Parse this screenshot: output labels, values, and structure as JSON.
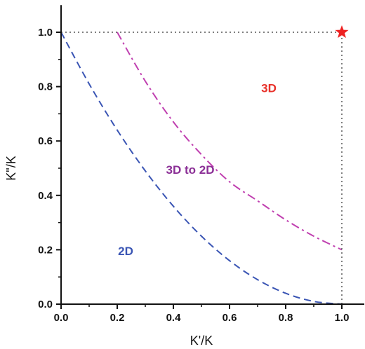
{
  "chart_data": {
    "type": "line",
    "xlabel": "K'/K",
    "ylabel": "K\"/K",
    "xlim": [
      0,
      1.08
    ],
    "ylim": [
      0,
      1.1
    ],
    "x_ticks": [
      "0.0",
      "0.2",
      "0.4",
      "0.6",
      "0.8",
      "1.0"
    ],
    "y_ticks": [
      "0.0",
      "0.2",
      "0.4",
      "0.6",
      "0.8",
      "1.0"
    ],
    "grid": false,
    "series": [
      {
        "style": "dashed",
        "color": "#3a55b4",
        "x": [
          0.0,
          0.1,
          0.2,
          0.3,
          0.4,
          0.5,
          0.6,
          0.7,
          0.8,
          0.9,
          1.0
        ],
        "y": [
          1.0,
          0.81,
          0.64,
          0.49,
          0.36,
          0.25,
          0.16,
          0.09,
          0.04,
          0.01,
          0.0
        ]
      },
      {
        "style": "dash-dot",
        "color": "#c040b0",
        "x": [
          0.2,
          0.3,
          0.4,
          0.5,
          0.6,
          0.7,
          0.8,
          0.9,
          1.0
        ],
        "y": [
          1.0,
          0.82,
          0.67,
          0.55,
          0.45,
          0.38,
          0.31,
          0.25,
          0.2
        ]
      },
      {
        "style": "dotted",
        "color": "#555555",
        "x": [
          0.0,
          1.0
        ],
        "y": [
          1.0,
          1.0
        ]
      },
      {
        "style": "dotted",
        "color": "#555555",
        "x": [
          1.0,
          1.0
        ],
        "y": [
          0.0,
          1.0
        ]
      }
    ],
    "markers": [
      {
        "shape": "star",
        "color": "#ee2222",
        "x": 1.0,
        "y": 1.0
      }
    ],
    "annotations": [
      {
        "text": "3D",
        "x": 0.74,
        "y": 0.78,
        "color": "#e8312a"
      },
      {
        "text": "3D to 2D",
        "x": 0.46,
        "y": 0.48,
        "color": "#8b2f96"
      },
      {
        "text": "2D",
        "x": 0.23,
        "y": 0.18,
        "color": "#3a55b4"
      }
    ]
  }
}
